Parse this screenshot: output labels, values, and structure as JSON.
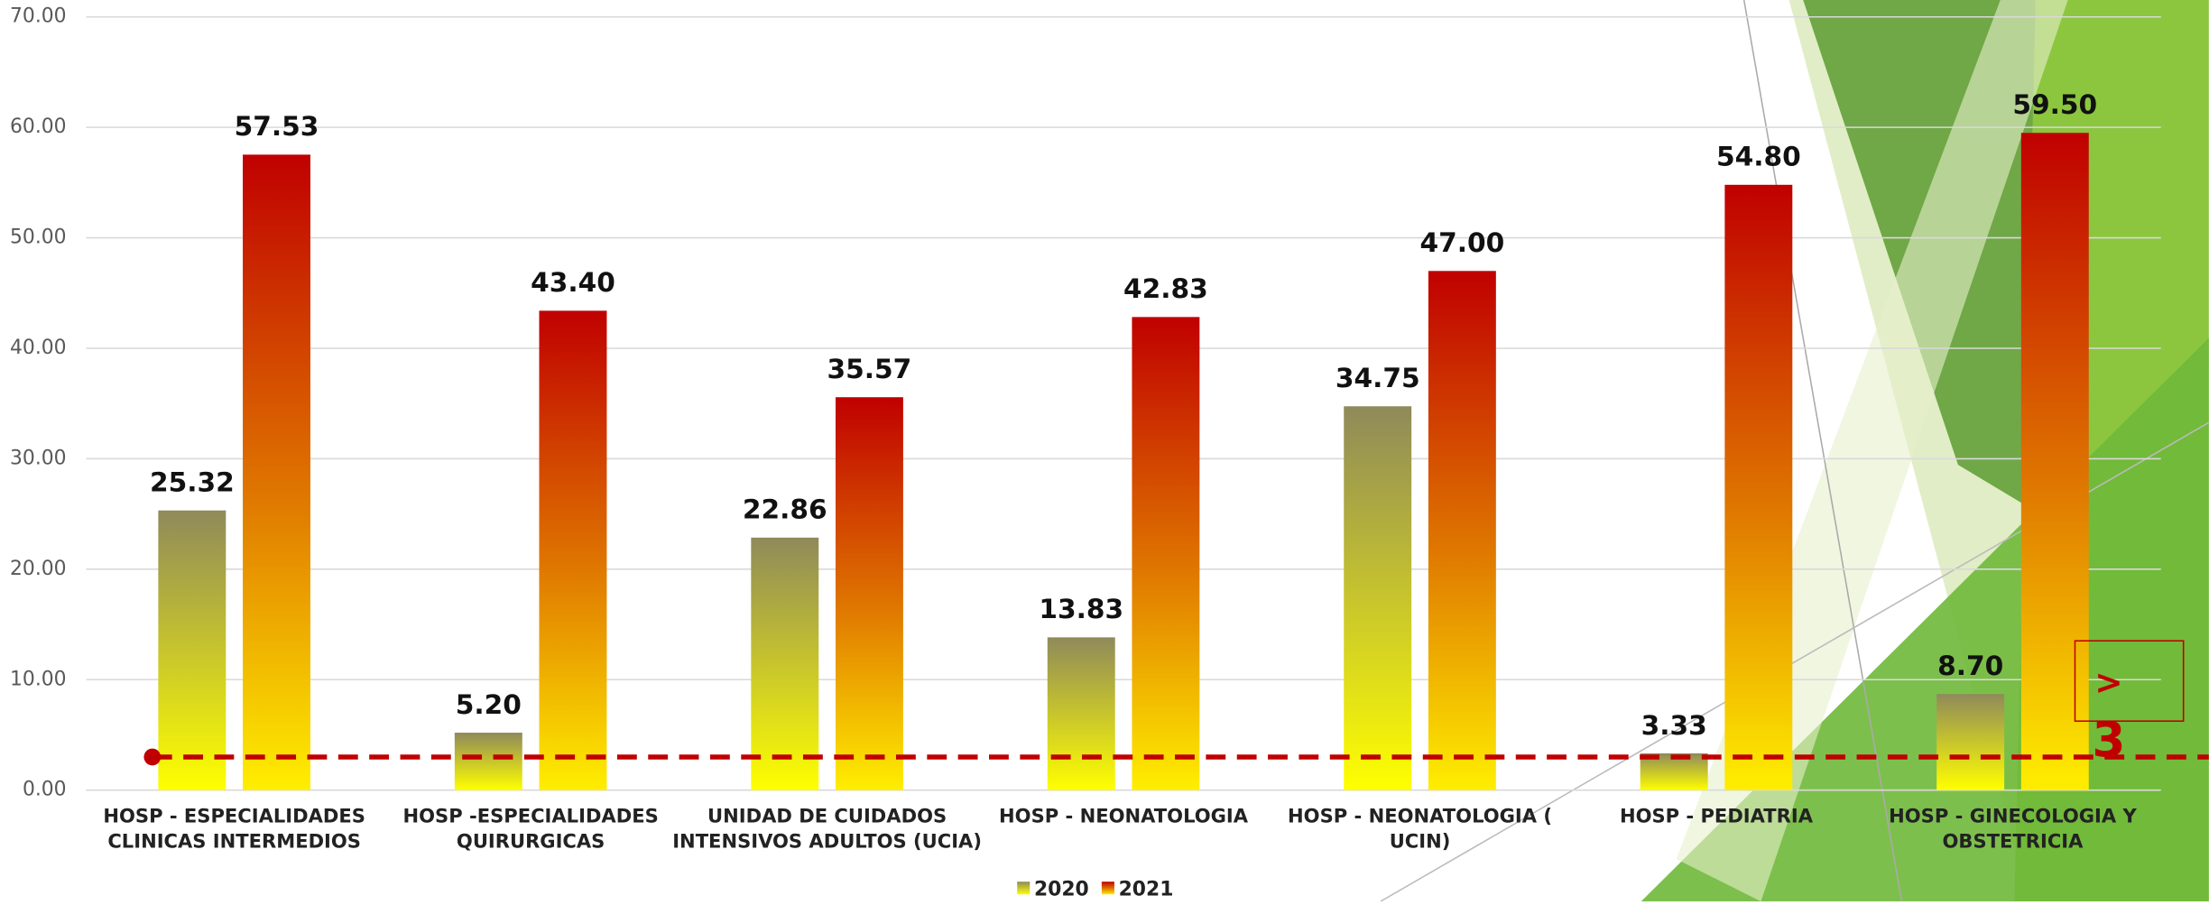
{
  "chart_data": {
    "type": "bar",
    "categories": [
      "HOSP - ESPECIALIDADES\nCLINICAS INTERMEDIOS",
      "HOSP -ESPECIALIDADES\nQUIRURGICAS",
      "UNIDAD DE CUIDADOS\nINTENSIVOS ADULTOS (UCIA)",
      "HOSP - NEONATOLOGIA",
      "HOSP - NEONATOLOGIA  (\nUCIN)",
      "HOSP - PEDIATRIA",
      "HOSP - GINECOLOGIA Y\nOBSTETRICIA"
    ],
    "series": [
      {
        "name": "2020",
        "color": "#8f8a5a",
        "values": [
          25.32,
          5.2,
          22.86,
          13.83,
          34.75,
          3.33,
          8.7
        ],
        "value_labels": [
          "25.32",
          "5.20",
          "22.86",
          "13.83",
          "34.75",
          "3.33",
          "8.70"
        ]
      },
      {
        "name": "2021",
        "color": "#c00000",
        "values": [
          57.53,
          43.4,
          35.57,
          42.83,
          47.0,
          54.8,
          59.5
        ],
        "value_labels": [
          "57.53",
          "43.40",
          "35.57",
          "42.83",
          "47.00",
          "54.80",
          "59.50"
        ]
      }
    ],
    "ylim": [
      0,
      70
    ],
    "yticks": [
      {
        "value": 0,
        "label": "0.00"
      },
      {
        "value": 10,
        "label": "10.00"
      },
      {
        "value": 20,
        "label": "20.00"
      },
      {
        "value": 30,
        "label": "30.00"
      },
      {
        "value": 40,
        "label": "40.00"
      },
      {
        "value": 50,
        "label": "50.00"
      },
      {
        "value": 60,
        "label": "60.00"
      },
      {
        "value": 70,
        "label": "70.00"
      }
    ],
    "grid": true,
    "reference_line": {
      "value": 3,
      "color": "#c00000"
    },
    "annotation": ">"
  }
}
